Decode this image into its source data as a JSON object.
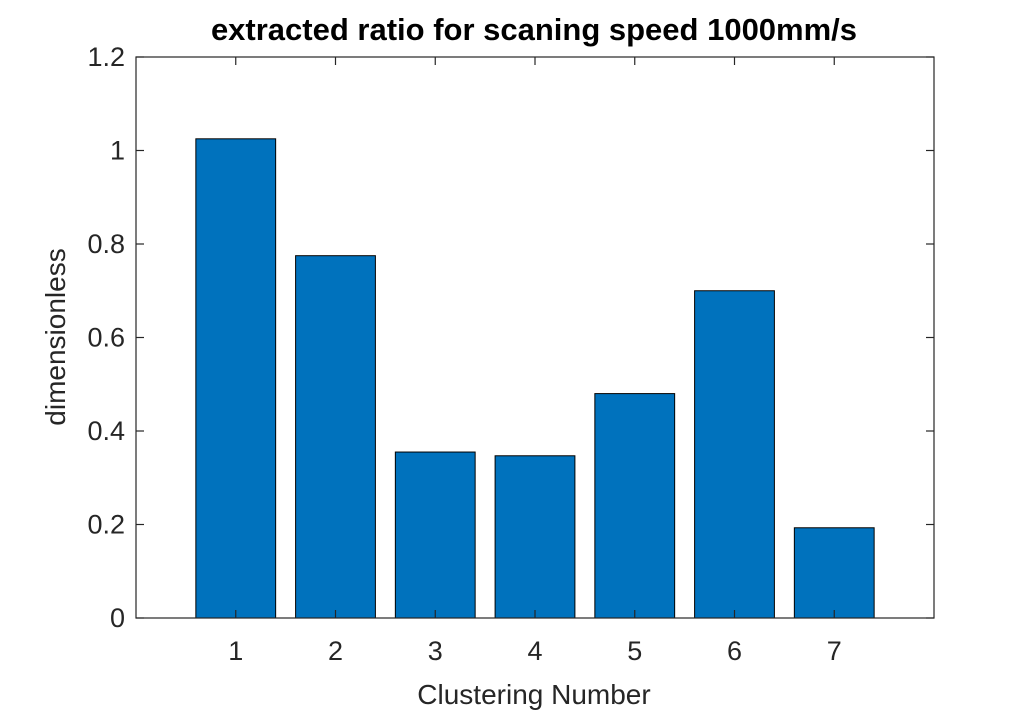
{
  "chart_data": {
    "type": "bar",
    "title": "extracted ratio for scaning speed 1000mm/s",
    "xlabel": "Clustering Number",
    "ylabel": "dimensionless",
    "categories": [
      "1",
      "2",
      "3",
      "4",
      "5",
      "6",
      "7"
    ],
    "values": [
      1.025,
      0.775,
      0.355,
      0.347,
      0.48,
      0.7,
      0.193
    ],
    "ylim": [
      0,
      1.2
    ],
    "xlim": [
      0,
      8
    ],
    "yticks": [
      "0",
      "0.2",
      "0.4",
      "0.6",
      "0.8",
      "1",
      "1.2"
    ],
    "bar_color": "#0072BD",
    "grid": false,
    "legend": "none"
  }
}
